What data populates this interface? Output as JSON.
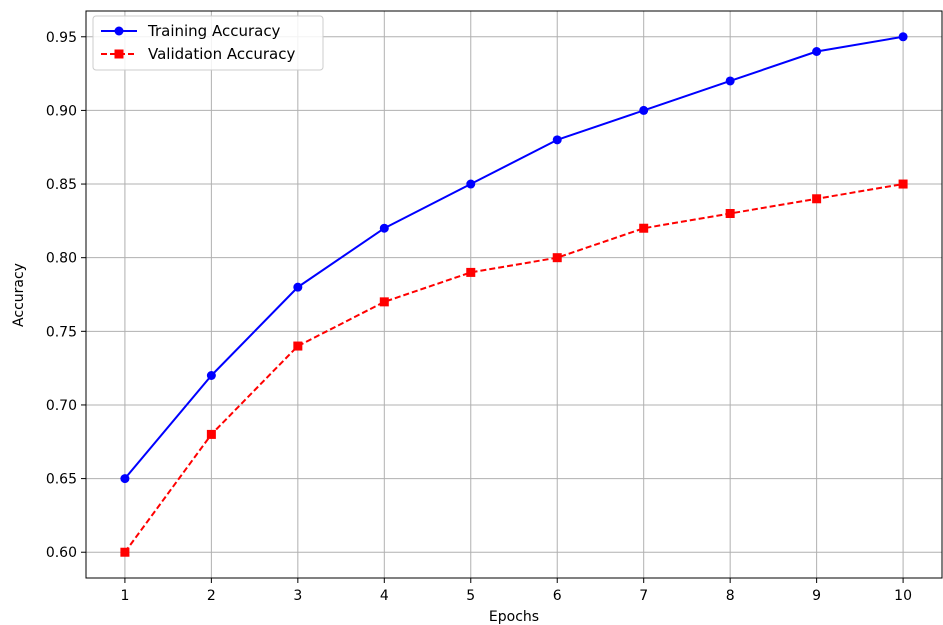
{
  "chart_data": {
    "type": "line",
    "title": "",
    "xlabel": "Epochs",
    "ylabel": "Accuracy",
    "x": [
      1,
      2,
      3,
      4,
      5,
      6,
      7,
      8,
      9,
      10
    ],
    "x_ticks": [
      "1",
      "2",
      "3",
      "4",
      "5",
      "6",
      "7",
      "8",
      "9",
      "10"
    ],
    "y_ticks": [
      "0.60",
      "0.65",
      "0.70",
      "0.75",
      "0.80",
      "0.85",
      "0.90",
      "0.95"
    ],
    "xlim": [
      0.55,
      10.45
    ],
    "ylim": [
      0.5825,
      0.9675
    ],
    "grid": true,
    "legend_position": "upper-left",
    "series": [
      {
        "name": "Training Accuracy",
        "color": "#0000ff",
        "line_style": "solid",
        "marker": "circle",
        "values": [
          0.65,
          0.72,
          0.78,
          0.82,
          0.85,
          0.88,
          0.9,
          0.92,
          0.94,
          0.95
        ]
      },
      {
        "name": "Validation Accuracy",
        "color": "#ff0000",
        "line_style": "dashed",
        "marker": "square",
        "values": [
          0.6,
          0.68,
          0.74,
          0.77,
          0.79,
          0.8,
          0.82,
          0.83,
          0.84,
          0.85
        ]
      }
    ]
  }
}
